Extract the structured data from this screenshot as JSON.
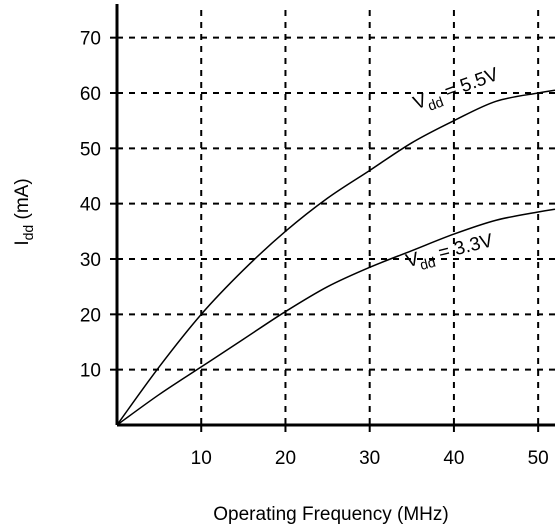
{
  "chart_data": {
    "type": "line",
    "xlabel": "Operating Frequency (MHz)",
    "ylabel": {
      "base": "I",
      "sub": "dd",
      "suffix": " (mA)"
    },
    "xlim": [
      0,
      52
    ],
    "ylim": [
      0,
      75
    ],
    "x_ticks": [
      10,
      20,
      30,
      40,
      50
    ],
    "y_ticks": [
      10,
      20,
      30,
      40,
      50,
      60,
      70
    ],
    "grid": true,
    "grid_style": "dashed",
    "series": [
      {
        "name": "V_dd = 5.5V",
        "label": {
          "base": "V",
          "sub": "dd",
          "suffix": " = 5.5V"
        },
        "x": [
          0,
          5,
          10,
          15,
          20,
          25,
          30,
          35,
          40,
          45,
          50,
          52
        ],
        "y": [
          0,
          10.5,
          20,
          28,
          35,
          41,
          46,
          51,
          55,
          58.5,
          60,
          60.5
        ]
      },
      {
        "name": "V_dd = 3.3V",
        "label": {
          "base": "V",
          "sub": "dd",
          "suffix": " = 3.3V"
        },
        "x": [
          0,
          5,
          10,
          15,
          20,
          25,
          30,
          35,
          40,
          45,
          50,
          52
        ],
        "y": [
          0,
          5.5,
          10.5,
          15.5,
          20.5,
          25,
          28.5,
          31.5,
          34.5,
          37,
          38.5,
          39
        ]
      }
    ]
  }
}
